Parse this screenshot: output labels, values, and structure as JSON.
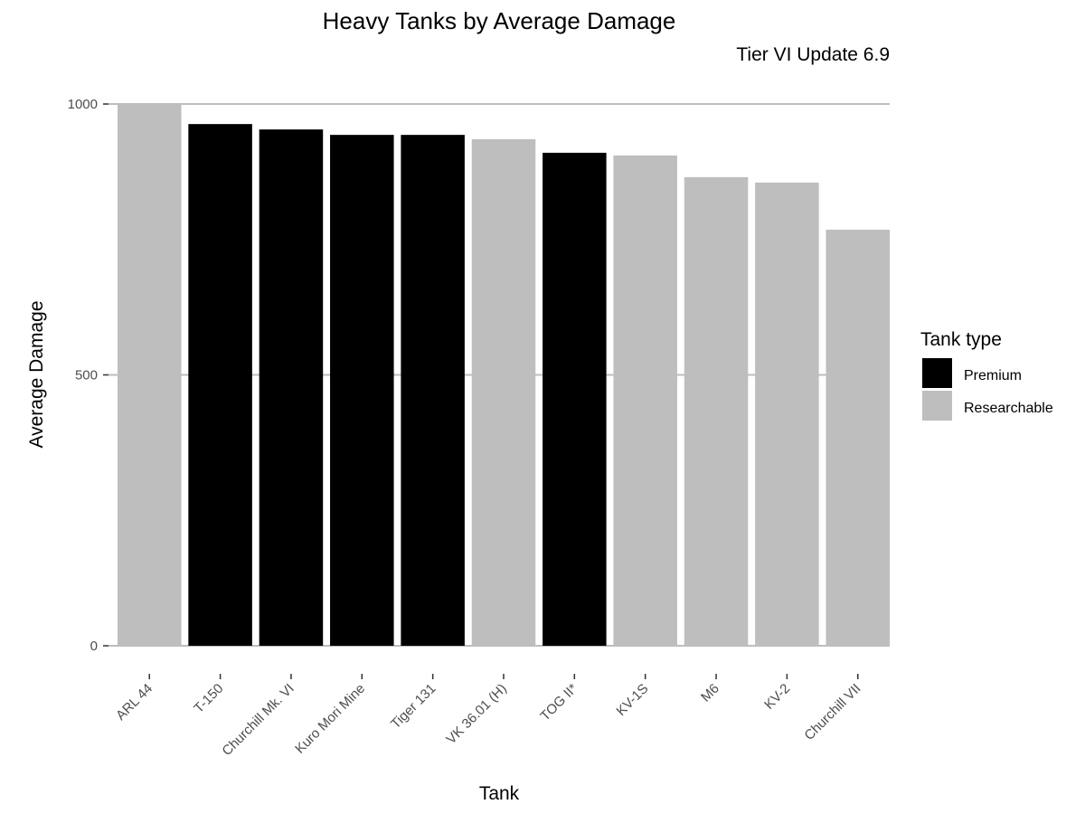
{
  "chart_data": {
    "type": "bar",
    "title": "Heavy Tanks by Average Damage",
    "subtitle": "Tier VI Update 6.9",
    "xlabel": "Tank",
    "ylabel": "Average Damage",
    "ylim": [
      0,
      1000
    ],
    "yticks": [
      0,
      500,
      1000
    ],
    "grid": "horizontal",
    "categories": [
      "ARL 44",
      "T-150",
      "Churchill Mk. VI",
      "Kuro Mori Mine",
      "Tiger 131",
      "VK 36.01 (H)",
      "TOG II*",
      "KV-1S",
      "M6",
      "KV-2",
      "Churchill VII"
    ],
    "values": [
      1000,
      963,
      953,
      943,
      943,
      935,
      910,
      905,
      865,
      855,
      768
    ],
    "types": [
      "Researchable",
      "Premium",
      "Premium",
      "Premium",
      "Premium",
      "Researchable",
      "Premium",
      "Researchable",
      "Researchable",
      "Researchable",
      "Researchable"
    ],
    "legend": {
      "title": "Tank type",
      "position": "right",
      "entries": [
        {
          "name": "Premium",
          "color": "#000000"
        },
        {
          "name": "Researchable",
          "color": "#bebebe"
        }
      ]
    }
  }
}
